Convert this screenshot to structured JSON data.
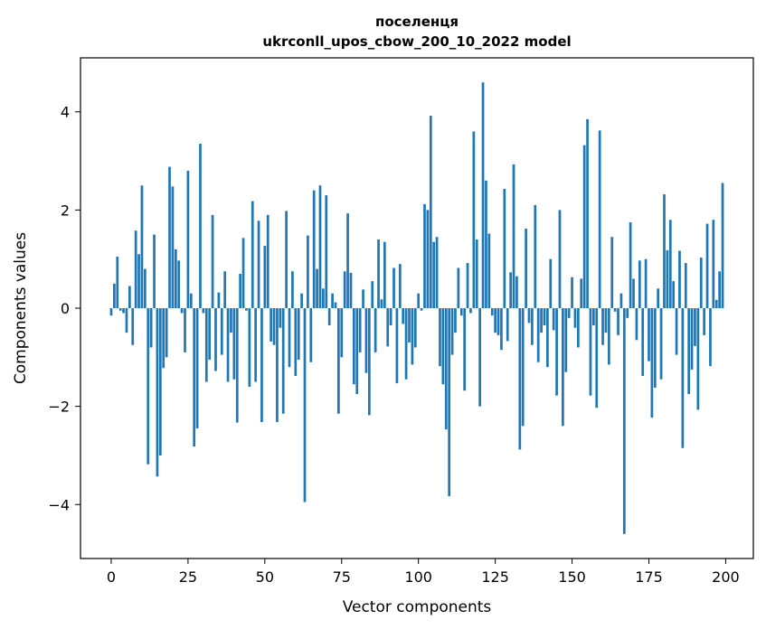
{
  "chart_data": {
    "type": "bar",
    "title": "поселенця",
    "subtitle": "ukrconll_upos_cbow_200_10_2022 model",
    "xlabel": "Vector components",
    "ylabel": "Components values",
    "xlim": [
      -10,
      209
    ],
    "ylim": [
      -5.1,
      5.1
    ],
    "xticks": [
      0,
      25,
      50,
      75,
      100,
      125,
      150,
      175,
      200
    ],
    "yticks": [
      -4,
      -2,
      0,
      2,
      4
    ],
    "xtick_labels": [
      "0",
      "25",
      "50",
      "75",
      "100",
      "125",
      "150",
      "175",
      "200"
    ],
    "ytick_labels": [
      "−4",
      "−2",
      "0",
      "2",
      "4"
    ],
    "grid": false,
    "bar_color": "#1f77b4",
    "values": [
      -0.15,
      0.5,
      1.05,
      -0.05,
      -0.1,
      -0.5,
      0.45,
      -0.75,
      1.58,
      1.1,
      2.5,
      0.8,
      -3.18,
      -0.8,
      1.5,
      -3.43,
      -3.0,
      -1.22,
      -1.0,
      2.88,
      2.48,
      1.2,
      0.97,
      -0.1,
      -0.9,
      2.8,
      0.3,
      -2.82,
      -2.45,
      3.35,
      -0.1,
      -1.5,
      -1.05,
      1.9,
      -1.28,
      0.32,
      -0.95,
      0.75,
      -1.5,
      -0.5,
      -1.45,
      -2.33,
      0.7,
      1.43,
      -0.05,
      -1.6,
      2.18,
      -1.5,
      1.78,
      -2.32,
      1.27,
      1.9,
      -0.68,
      -0.75,
      -2.32,
      -0.4,
      -2.15,
      1.98,
      -1.2,
      0.75,
      -1.38,
      -1.05,
      0.3,
      -3.95,
      1.48,
      -1.1,
      2.4,
      0.8,
      2.5,
      0.4,
      2.3,
      -0.35,
      0.3,
      0.12,
      -2.15,
      -1.0,
      0.75,
      1.93,
      0.72,
      -1.55,
      -1.75,
      -0.9,
      0.38,
      -1.32,
      -2.18,
      0.55,
      -0.9,
      1.4,
      0.18,
      1.35,
      -0.78,
      -0.35,
      0.82,
      -1.53,
      0.9,
      -0.32,
      -1.45,
      -0.7,
      -1.15,
      -0.8,
      0.3,
      -0.05,
      2.12,
      2.0,
      3.92,
      1.35,
      1.45,
      -1.18,
      -1.55,
      -2.47,
      -3.83,
      -0.95,
      -0.5,
      0.82,
      -0.15,
      -1.68,
      0.92,
      -0.1,
      3.6,
      1.4,
      -2.0,
      4.6,
      2.6,
      1.52,
      -0.15,
      -0.5,
      -0.55,
      -0.85,
      2.43,
      -0.67,
      0.73,
      2.93,
      0.65,
      -2.88,
      -2.4,
      1.62,
      -0.3,
      -0.75,
      2.1,
      -1.1,
      -0.5,
      -0.35,
      -1.2,
      1.0,
      -0.45,
      -1.78,
      2.0,
      -2.4,
      -1.3,
      -0.2,
      0.63,
      -0.4,
      -0.8,
      0.6,
      3.32,
      3.85,
      -1.78,
      -0.35,
      -2.03,
      3.62,
      -0.75,
      -0.5,
      -1.15,
      1.45,
      -0.07,
      -0.55,
      0.3,
      -4.6,
      -0.2,
      1.75,
      0.6,
      -0.65,
      0.97,
      -1.38,
      1.0,
      -1.08,
      -2.23,
      -1.62,
      0.4,
      -1.45,
      2.32,
      1.18,
      1.8,
      0.55,
      -0.95,
      1.17,
      -2.85,
      0.92,
      -1.75,
      -1.25,
      -0.77,
      -2.07,
      1.03,
      -0.55,
      1.72,
      -1.18,
      1.8,
      0.17,
      0.75,
      2.55
    ]
  }
}
